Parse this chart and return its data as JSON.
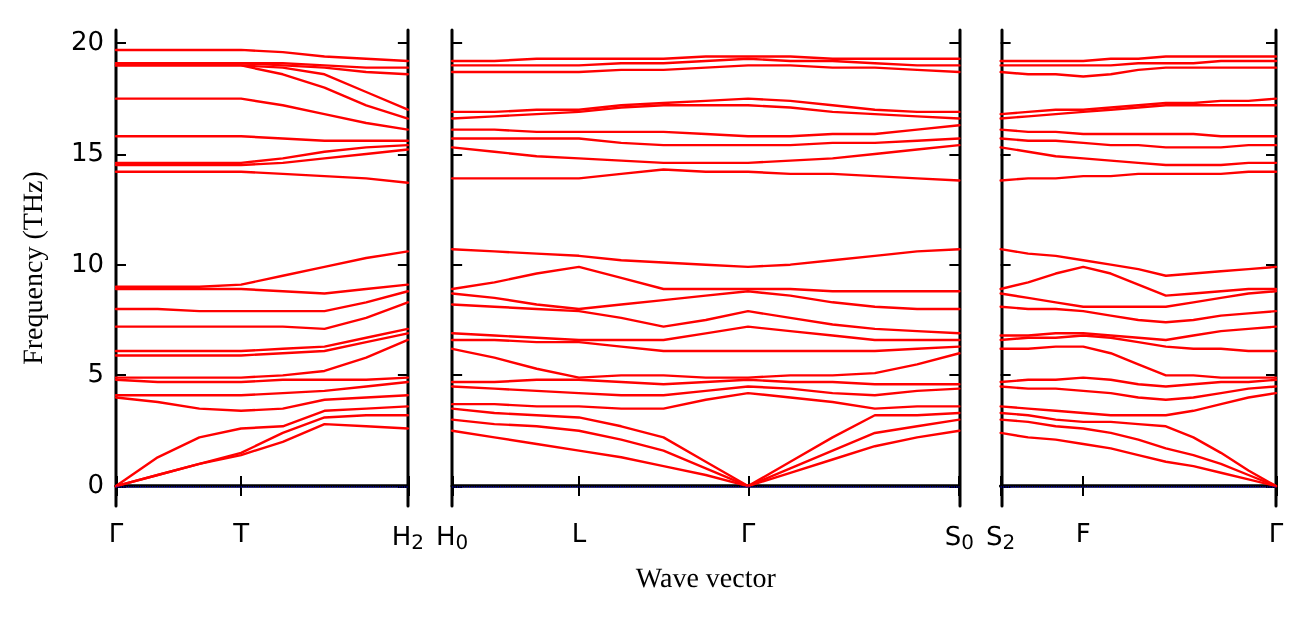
{
  "chart_data": [
    {
      "type": "line",
      "ylabel": "Frequency (THz)",
      "color": "#ff0000",
      "ylim": [
        -0.9,
        20.6
      ],
      "yticks": [
        0,
        5,
        10,
        15,
        20
      ],
      "categories": [
        "Γ",
        null,
        null,
        "T",
        null,
        null,
        null,
        "H$_{2}$"
      ],
      "ref_lines": [
        {
          "axis": "y",
          "value": 0,
          "color": "#0000ff",
          "line_style": "dotted"
        }
      ],
      "series": [
        {
          "values": [
            0,
            0.5,
            1.0,
            1.4,
            2.0,
            2.8,
            2.7,
            2.6
          ]
        },
        {
          "values": [
            0,
            0.5,
            1.0,
            1.5,
            2.4,
            3.1,
            3.2,
            3.2
          ]
        },
        {
          "values": [
            0,
            1.3,
            2.2,
            2.6,
            2.7,
            3.4,
            3.5,
            3.6
          ]
        },
        {
          "values": [
            4.0,
            3.8,
            3.5,
            3.4,
            3.5,
            3.9,
            4.0,
            4.1
          ]
        },
        {
          "values": [
            4.1,
            4.1,
            4.1,
            4.1,
            4.2,
            4.3,
            4.5,
            4.7
          ]
        },
        {
          "values": [
            4.8,
            4.7,
            4.7,
            4.7,
            4.8,
            4.8,
            4.8,
            4.9
          ]
        },
        {
          "values": [
            4.9,
            4.9,
            4.9,
            4.9,
            5.0,
            5.2,
            5.8,
            6.6
          ]
        },
        {
          "values": [
            5.9,
            5.9,
            5.9,
            5.9,
            6.0,
            6.1,
            6.5,
            6.9
          ]
        },
        {
          "values": [
            6.1,
            6.1,
            6.1,
            6.1,
            6.2,
            6.3,
            6.7,
            7.1
          ]
        },
        {
          "values": [
            7.2,
            7.2,
            7.2,
            7.2,
            7.2,
            7.1,
            7.6,
            8.3
          ]
        },
        {
          "values": [
            8.0,
            8.0,
            7.9,
            7.9,
            7.9,
            7.9,
            8.3,
            8.8
          ]
        },
        {
          "values": [
            8.9,
            8.9,
            8.9,
            8.9,
            8.8,
            8.7,
            8.9,
            9.1
          ]
        },
        {
          "values": [
            9.0,
            9.0,
            9.0,
            9.1,
            9.5,
            9.9,
            10.3,
            10.6
          ]
        },
        {
          "values": [
            14.2,
            14.2,
            14.2,
            14.2,
            14.1,
            14.0,
            13.9,
            13.7
          ]
        },
        {
          "values": [
            14.5,
            14.5,
            14.5,
            14.5,
            14.6,
            14.8,
            15.0,
            15.2
          ]
        },
        {
          "values": [
            14.6,
            14.6,
            14.6,
            14.6,
            14.8,
            15.1,
            15.3,
            15.4
          ]
        },
        {
          "values": [
            15.8,
            15.8,
            15.8,
            15.8,
            15.7,
            15.6,
            15.6,
            15.6
          ]
        },
        {
          "values": [
            17.5,
            17.5,
            17.5,
            17.5,
            17.2,
            16.8,
            16.4,
            16.1
          ]
        },
        {
          "values": [
            19.0,
            19.0,
            19.0,
            19.0,
            18.6,
            18.0,
            17.2,
            16.6
          ]
        },
        {
          "values": [
            19.0,
            19.0,
            19.0,
            19.0,
            18.9,
            18.6,
            17.8,
            17.0
          ]
        },
        {
          "values": [
            19.1,
            19.1,
            19.1,
            19.1,
            19.0,
            18.9,
            18.7,
            18.6
          ]
        },
        {
          "values": [
            19.1,
            19.1,
            19.1,
            19.1,
            19.1,
            19.0,
            18.9,
            18.9
          ]
        },
        {
          "values": [
            19.7,
            19.7,
            19.7,
            19.7,
            19.6,
            19.4,
            19.3,
            19.2
          ]
        }
      ]
    },
    {
      "type": "line",
      "xlabel": "Wave vector",
      "color": "#ff0000",
      "ylim": [
        -0.9,
        20.6
      ],
      "yticks": [
        0,
        5,
        10,
        15,
        20
      ],
      "tick_labels": "x",
      "categories": [
        "H$_{0}$",
        null,
        null,
        "L",
        null,
        null,
        null,
        "Γ",
        null,
        null,
        null,
        null,
        "S$_{0}$"
      ],
      "ref_lines": [
        {
          "axis": "y",
          "value": 0,
          "color": "#0000ff",
          "line_style": "dotted"
        }
      ],
      "series": [
        {
          "values": [
            2.5,
            2.2,
            1.9,
            1.6,
            1.3,
            0.9,
            0.5,
            0,
            0.6,
            1.2,
            1.8,
            2.2,
            2.5
          ]
        },
        {
          "values": [
            3.0,
            2.8,
            2.7,
            2.5,
            2.1,
            1.6,
            0.8,
            0,
            0.8,
            1.6,
            2.4,
            2.7,
            3.0
          ]
        },
        {
          "values": [
            3.5,
            3.3,
            3.2,
            3.1,
            2.7,
            2.2,
            1.1,
            0,
            1.1,
            2.2,
            3.2,
            3.2,
            3.3
          ]
        },
        {
          "values": [
            3.7,
            3.7,
            3.6,
            3.6,
            3.5,
            3.5,
            3.9,
            4.2,
            4.0,
            3.8,
            3.5,
            3.6,
            3.6
          ]
        },
        {
          "values": [
            4.5,
            4.4,
            4.3,
            4.2,
            4.1,
            4.1,
            4.3,
            4.5,
            4.4,
            4.2,
            4.1,
            4.3,
            4.4
          ]
        },
        {
          "values": [
            4.7,
            4.7,
            4.8,
            4.8,
            4.7,
            4.6,
            4.7,
            4.8,
            4.7,
            4.7,
            4.6,
            4.6,
            4.6
          ]
        },
        {
          "values": [
            6.2,
            5.8,
            5.3,
            4.9,
            5.0,
            5.0,
            4.9,
            4.9,
            5.0,
            5.0,
            5.1,
            5.5,
            6.0
          ]
        },
        {
          "values": [
            6.6,
            6.6,
            6.5,
            6.5,
            6.3,
            6.1,
            6.1,
            6.1,
            6.1,
            6.1,
            6.1,
            6.2,
            6.3
          ]
        },
        {
          "values": [
            6.9,
            6.8,
            6.7,
            6.6,
            6.6,
            6.6,
            6.9,
            7.2,
            7.0,
            6.8,
            6.6,
            6.6,
            6.6
          ]
        },
        {
          "values": [
            8.2,
            8.1,
            8.0,
            7.9,
            7.6,
            7.2,
            7.5,
            7.9,
            7.6,
            7.3,
            7.1,
            7.0,
            6.9
          ]
        },
        {
          "values": [
            8.7,
            8.5,
            8.2,
            8.0,
            8.2,
            8.4,
            8.6,
            8.8,
            8.6,
            8.3,
            8.1,
            8.0,
            8.0
          ]
        },
        {
          "values": [
            8.9,
            9.2,
            9.6,
            9.9,
            9.4,
            8.9,
            8.9,
            8.9,
            8.9,
            8.8,
            8.8,
            8.8,
            8.8
          ]
        },
        {
          "values": [
            10.7,
            10.6,
            10.5,
            10.4,
            10.2,
            10.1,
            10.0,
            9.9,
            10.0,
            10.2,
            10.4,
            10.6,
            10.7
          ]
        },
        {
          "values": [
            13.9,
            13.9,
            13.9,
            13.9,
            14.1,
            14.3,
            14.2,
            14.2,
            14.1,
            14.1,
            14.0,
            13.9,
            13.8
          ]
        },
        {
          "values": [
            15.3,
            15.1,
            14.9,
            14.8,
            14.7,
            14.6,
            14.6,
            14.6,
            14.7,
            14.8,
            15.0,
            15.2,
            15.4
          ]
        },
        {
          "values": [
            15.7,
            15.7,
            15.7,
            15.7,
            15.5,
            15.4,
            15.4,
            15.4,
            15.4,
            15.5,
            15.5,
            15.6,
            15.7
          ]
        },
        {
          "values": [
            16.1,
            16.1,
            16.0,
            16.0,
            16.0,
            16.0,
            15.9,
            15.8,
            15.8,
            15.9,
            15.9,
            16.1,
            16.3
          ]
        },
        {
          "values": [
            16.6,
            16.7,
            16.8,
            16.9,
            17.1,
            17.2,
            17.2,
            17.2,
            17.1,
            16.9,
            16.8,
            16.7,
            16.6
          ]
        },
        {
          "values": [
            16.9,
            16.9,
            17.0,
            17.0,
            17.2,
            17.3,
            17.4,
            17.5,
            17.4,
            17.2,
            17.0,
            16.9,
            16.9
          ]
        },
        {
          "values": [
            18.7,
            18.7,
            18.7,
            18.7,
            18.8,
            18.8,
            18.9,
            19.0,
            19.0,
            18.9,
            18.9,
            18.8,
            18.7
          ]
        },
        {
          "values": [
            19.0,
            19.0,
            19.0,
            19.0,
            19.1,
            19.1,
            19.2,
            19.3,
            19.2,
            19.2,
            19.1,
            19.0,
            19.0
          ]
        },
        {
          "values": [
            19.2,
            19.2,
            19.3,
            19.3,
            19.3,
            19.3,
            19.4,
            19.4,
            19.4,
            19.3,
            19.3,
            19.3,
            19.3
          ]
        }
      ]
    },
    {
      "type": "line",
      "color": "#ff0000",
      "ylim": [
        -0.9,
        20.6
      ],
      "yticks": [
        0,
        5,
        10,
        15,
        20
      ],
      "tick_labels": "x",
      "categories": [
        "S$_{2}$",
        null,
        null,
        "F",
        null,
        null,
        null,
        null,
        null,
        null,
        "Γ"
      ],
      "ref_lines": [
        {
          "axis": "y",
          "value": 0,
          "color": "#0000ff",
          "line_style": "dotted"
        }
      ],
      "series": [
        {
          "values": [
            2.4,
            2.2,
            2.1,
            1.9,
            1.7,
            1.4,
            1.1,
            0.9,
            0.6,
            0.3,
            0
          ]
        },
        {
          "values": [
            3.0,
            2.9,
            2.7,
            2.6,
            2.4,
            2.1,
            1.7,
            1.4,
            1.0,
            0.5,
            0
          ]
        },
        {
          "values": [
            3.3,
            3.2,
            3.0,
            2.9,
            2.9,
            2.8,
            2.7,
            2.2,
            1.5,
            0.7,
            0
          ]
        },
        {
          "values": [
            3.6,
            3.5,
            3.4,
            3.3,
            3.2,
            3.2,
            3.2,
            3.4,
            3.7,
            4.0,
            4.2
          ]
        },
        {
          "values": [
            4.5,
            4.4,
            4.4,
            4.3,
            4.2,
            4.0,
            3.9,
            4.0,
            4.2,
            4.4,
            4.5
          ]
        },
        {
          "values": [
            4.7,
            4.8,
            4.8,
            4.9,
            4.8,
            4.6,
            4.5,
            4.6,
            4.7,
            4.7,
            4.8
          ]
        },
        {
          "values": [
            6.2,
            6.2,
            6.3,
            6.3,
            6.0,
            5.5,
            5.0,
            5.0,
            4.9,
            4.9,
            4.9
          ]
        },
        {
          "values": [
            6.6,
            6.7,
            6.7,
            6.8,
            6.7,
            6.5,
            6.3,
            6.2,
            6.2,
            6.1,
            6.1
          ]
        },
        {
          "values": [
            6.8,
            6.8,
            6.9,
            6.9,
            6.8,
            6.7,
            6.6,
            6.8,
            7.0,
            7.1,
            7.2
          ]
        },
        {
          "values": [
            8.1,
            8.0,
            8.0,
            7.9,
            7.7,
            7.5,
            7.4,
            7.5,
            7.7,
            7.8,
            7.9
          ]
        },
        {
          "values": [
            8.7,
            8.5,
            8.3,
            8.1,
            8.1,
            8.1,
            8.1,
            8.3,
            8.5,
            8.7,
            8.8
          ]
        },
        {
          "values": [
            8.9,
            9.2,
            9.6,
            9.9,
            9.6,
            9.1,
            8.6,
            8.7,
            8.8,
            8.9,
            8.9
          ]
        },
        {
          "values": [
            10.7,
            10.5,
            10.4,
            10.2,
            10.0,
            9.8,
            9.5,
            9.6,
            9.7,
            9.8,
            9.9
          ]
        },
        {
          "values": [
            13.8,
            13.9,
            13.9,
            14.0,
            14.0,
            14.1,
            14.1,
            14.1,
            14.1,
            14.2,
            14.2
          ]
        },
        {
          "values": [
            15.3,
            15.1,
            14.9,
            14.8,
            14.7,
            14.6,
            14.5,
            14.5,
            14.5,
            14.6,
            14.6
          ]
        },
        {
          "values": [
            15.7,
            15.6,
            15.6,
            15.5,
            15.4,
            15.4,
            15.3,
            15.3,
            15.3,
            15.4,
            15.4
          ]
        },
        {
          "values": [
            16.1,
            16.0,
            16.0,
            15.9,
            15.9,
            15.9,
            15.9,
            15.9,
            15.8,
            15.8,
            15.8
          ]
        },
        {
          "values": [
            16.6,
            16.7,
            16.8,
            16.9,
            17.0,
            17.1,
            17.2,
            17.2,
            17.2,
            17.2,
            17.2
          ]
        },
        {
          "values": [
            16.8,
            16.9,
            17.0,
            17.0,
            17.1,
            17.2,
            17.3,
            17.3,
            17.4,
            17.4,
            17.5
          ]
        },
        {
          "values": [
            18.7,
            18.6,
            18.6,
            18.5,
            18.6,
            18.8,
            18.9,
            18.9,
            18.9,
            18.9,
            18.9
          ]
        },
        {
          "values": [
            19.0,
            19.0,
            19.0,
            19.0,
            19.0,
            19.1,
            19.1,
            19.1,
            19.2,
            19.2,
            19.2
          ]
        },
        {
          "values": [
            19.2,
            19.2,
            19.2,
            19.2,
            19.3,
            19.3,
            19.4,
            19.4,
            19.4,
            19.4,
            19.4
          ]
        }
      ]
    }
  ]
}
